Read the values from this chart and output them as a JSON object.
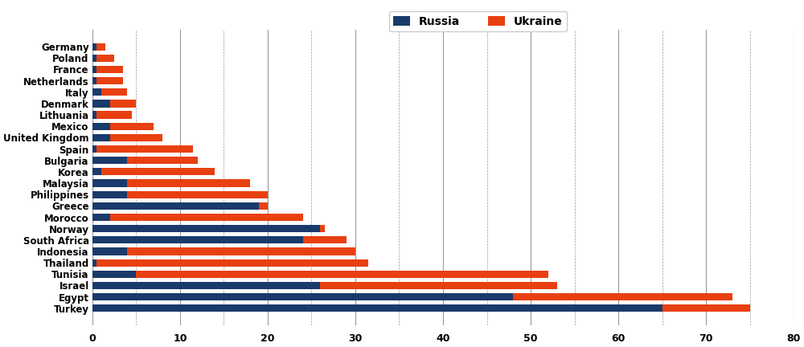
{
  "countries": [
    "Turkey",
    "Egypt",
    "Israel",
    "Tunisia",
    "Thailand",
    "Indonesia",
    "South Africa",
    "Norway",
    "Morocco",
    "Greece",
    "Philippines",
    "Malaysia",
    "Korea",
    "Bulgaria",
    "Spain",
    "United Kingdom",
    "Mexico",
    "Lithuania",
    "Denmark",
    "Italy",
    "Netherlands",
    "France",
    "Poland",
    "Germany"
  ],
  "russia": [
    65,
    48,
    26,
    5,
    0.5,
    4,
    24,
    26,
    2,
    19,
    4,
    4,
    1,
    4,
    0.5,
    2,
    2,
    0.5,
    2,
    1,
    0.5,
    0.5,
    0.5,
    0.5
  ],
  "ukraine": [
    10,
    25,
    27,
    47,
    31,
    26,
    5,
    0.5,
    22,
    1,
    16,
    14,
    13,
    8,
    11,
    6,
    5,
    4,
    3,
    3,
    3,
    3,
    2,
    1
  ],
  "russia_color": "#1a3a6b",
  "ukraine_color": "#e84010",
  "xlim": [
    0,
    80
  ],
  "xticks": [
    0,
    10,
    20,
    30,
    40,
    50,
    60,
    70,
    80
  ],
  "legend_russia": "Russia",
  "legend_ukraine": "Ukraine",
  "grid_color": "#999999",
  "background_color": "#ffffff"
}
